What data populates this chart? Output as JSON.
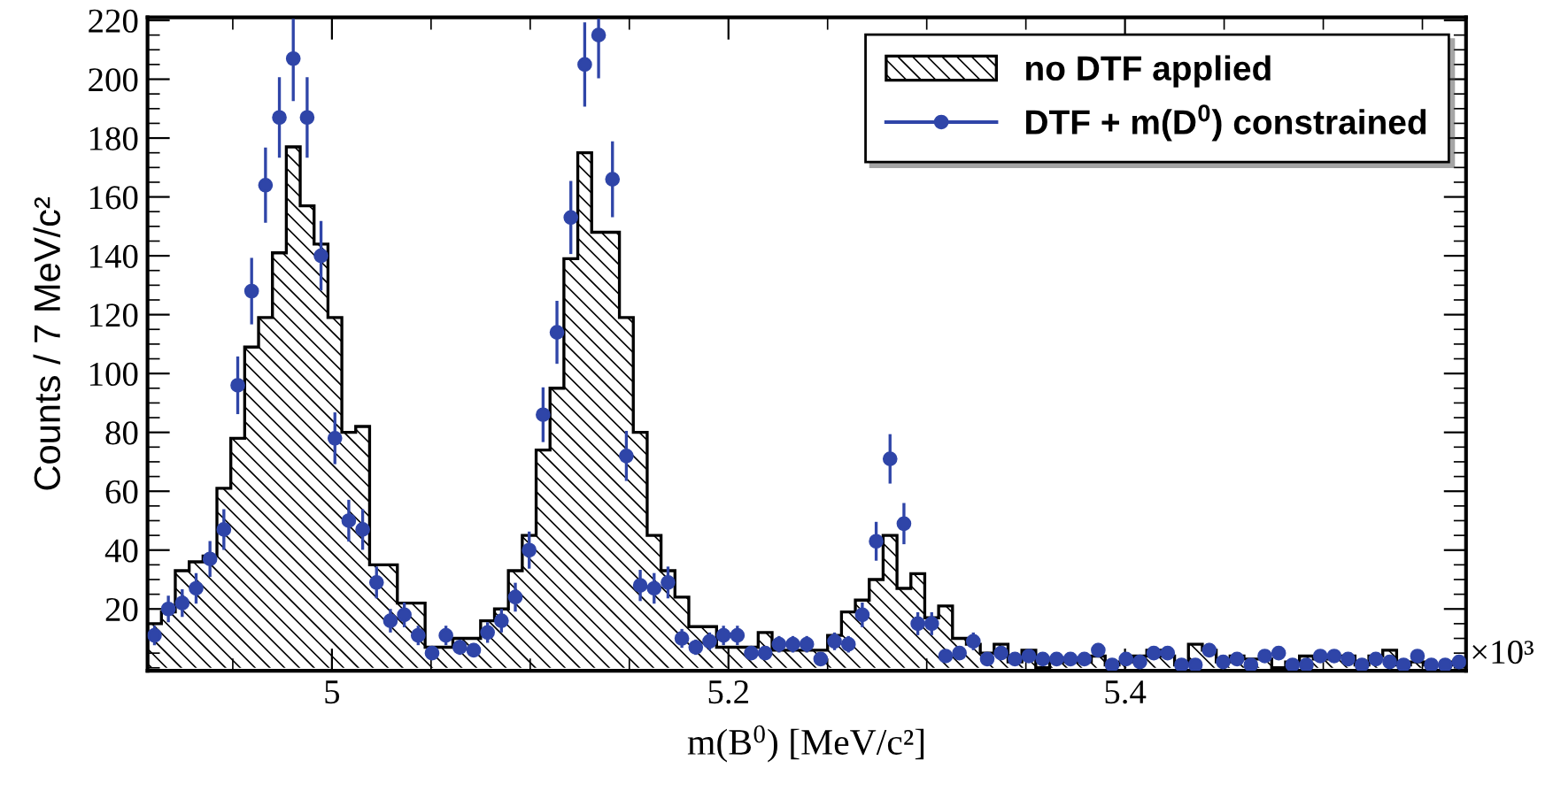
{
  "chart_data": {
    "type": "histogram",
    "xlabel": "m(B$^{0}$) [MeV/c²]",
    "ylabel": "Counts / 7 MeV/c²",
    "annotations": [
      "×10³"
    ],
    "xlim": [
      4.907,
      5.572
    ],
    "ylim": [
      -1,
      221
    ],
    "xticks": [
      {
        "value": 4.95,
        "label": null
      },
      {
        "value": 5,
        "label": "5"
      },
      {
        "value": 5.05,
        "label": null
      },
      {
        "value": 5.1,
        "label": null
      },
      {
        "value": 5.15,
        "label": null
      },
      5.2,
      {
        "value": 5.25,
        "label": null
      },
      {
        "value": 5.3,
        "label": null
      },
      {
        "value": 5.35,
        "label": null
      },
      5.4,
      {
        "value": 5.45,
        "label": null
      },
      {
        "value": 5.5,
        "label": null
      },
      {
        "value": 5.55,
        "label": null
      }
    ],
    "yticks": [
      {
        "value": 0,
        "label": null
      },
      {
        "value": 5,
        "label": null
      },
      {
        "value": 10,
        "label": null
      },
      {
        "value": 15,
        "label": null
      },
      20,
      {
        "value": 25,
        "label": null
      },
      {
        "value": 30,
        "label": null
      },
      {
        "value": 35,
        "label": null
      },
      40,
      {
        "value": 45,
        "label": null
      },
      {
        "value": 50,
        "label": null
      },
      {
        "value": 55,
        "label": null
      },
      60,
      {
        "value": 65,
        "label": null
      },
      {
        "value": 70,
        "label": null
      },
      {
        "value": 75,
        "label": null
      },
      80,
      {
        "value": 85,
        "label": null
      },
      {
        "value": 90,
        "label": null
      },
      {
        "value": 95,
        "label": null
      },
      100,
      {
        "value": 105,
        "label": null
      },
      {
        "value": 110,
        "label": null
      },
      {
        "value": 115,
        "label": null
      },
      120,
      {
        "value": 125,
        "label": null
      },
      {
        "value": 130,
        "label": null
      },
      {
        "value": 135,
        "label": null
      },
      140,
      {
        "value": 145,
        "label": null
      },
      {
        "value": 150,
        "label": null
      },
      {
        "value": 155,
        "label": null
      },
      160,
      {
        "value": 165,
        "label": null
      },
      {
        "value": 170,
        "label": null
      },
      {
        "value": 175,
        "label": null
      },
      180,
      {
        "value": 185,
        "label": null
      },
      {
        "value": 190,
        "label": null
      },
      {
        "value": 195,
        "label": null
      },
      200,
      {
        "value": 205,
        "label": null
      },
      {
        "value": 210,
        "label": null
      },
      {
        "value": 215,
        "label": null
      },
      220
    ],
    "bins": [
      4.907,
      4.914,
      4.921,
      4.928,
      4.935,
      4.942,
      4.949,
      4.956,
      4.963,
      4.97,
      4.977,
      4.984,
      4.991,
      4.998,
      5.005,
      5.012,
      5.019,
      5.026,
      5.033,
      5.04,
      5.047,
      5.054,
      5.061,
      5.068,
      5.075,
      5.082,
      5.089,
      5.096,
      5.103,
      5.11,
      5.117,
      5.124,
      5.131,
      5.138,
      5.145,
      5.152,
      5.159,
      5.166,
      5.173,
      5.18,
      5.187,
      5.194,
      5.201,
      5.208,
      5.215,
      5.222,
      5.229,
      5.236,
      5.243,
      5.25,
      5.257,
      5.264,
      5.271,
      5.278,
      5.285,
      5.292,
      5.299,
      5.306,
      5.313,
      5.32,
      5.327,
      5.334,
      5.341,
      5.348,
      5.355,
      5.362,
      5.369,
      5.376,
      5.383,
      5.39,
      5.397,
      5.404,
      5.411,
      5.418,
      5.425,
      5.432,
      5.439,
      5.446,
      5.453,
      5.46,
      5.467,
      5.474,
      5.481,
      5.488,
      5.495,
      5.502,
      5.509,
      5.516,
      5.523,
      5.53,
      5.537,
      5.544,
      5.551,
      5.558,
      5.565,
      5.572
    ],
    "legend": "top right",
    "grid": false,
    "series": [
      {
        "name": "no DTF applied",
        "color": "#000000",
        "values": [
          15,
          19,
          33,
          36,
          38,
          61,
          78,
          109,
          119,
          141,
          177,
          157,
          144,
          119,
          80,
          82,
          35,
          35,
          22,
          22,
          7,
          7,
          10,
          10,
          16,
          20,
          33,
          45,
          74,
          95,
          139,
          175,
          148,
          148,
          119,
          80,
          45,
          33,
          24,
          14,
          14,
          7,
          7,
          7,
          12,
          6,
          6,
          6,
          6,
          11,
          19,
          23,
          30,
          45,
          27,
          32,
          17,
          21,
          10,
          8,
          5,
          8,
          2,
          6,
          0,
          3,
          2,
          2,
          4,
          1,
          2,
          4,
          6,
          4,
          1,
          8,
          6,
          2,
          4,
          3,
          3,
          0,
          2,
          4,
          3,
          4,
          4,
          1,
          4,
          6,
          1,
          2,
          1,
          1,
          2
        ]
      },
      {
        "name": "DTF + m(D$^{0}$) constrained",
        "type": "scatter",
        "color": "#2f45a8",
        "marker": "circle",
        "x": [
          4.9105,
          4.9175,
          4.9245,
          4.9315,
          4.9385,
          4.9455,
          4.9525,
          4.9595,
          4.9665,
          4.9735,
          4.9805,
          4.9875,
          4.9945,
          5.0015,
          5.0085,
          5.0155,
          5.0225,
          5.0295,
          5.0365,
          5.0435,
          5.0505,
          5.0575,
          5.0645,
          5.0715,
          5.0785,
          5.0855,
          5.0925,
          5.0995,
          5.1065,
          5.1135,
          5.1205,
          5.1275,
          5.1345,
          5.1415,
          5.1485,
          5.1555,
          5.1625,
          5.1695,
          5.1765,
          5.1835,
          5.1905,
          5.1975,
          5.2045,
          5.2115,
          5.2185,
          5.2255,
          5.2325,
          5.2395,
          5.2465,
          5.2535,
          5.2605,
          5.2675,
          5.2745,
          5.2815,
          5.2885,
          5.2955,
          5.3025,
          5.3095,
          5.3165,
          5.3235,
          5.3305,
          5.3375,
          5.3445,
          5.3515,
          5.3585,
          5.3655,
          5.3725,
          5.3795,
          5.3865,
          5.3935,
          5.4005,
          5.4075,
          5.4145,
          5.4215,
          5.4285,
          5.4355,
          5.4425,
          5.4495,
          5.4565,
          5.4635,
          5.4705,
          5.4775,
          5.4845,
          5.4915,
          5.4985,
          5.5055,
          5.5125,
          5.5195,
          5.5265,
          5.5335,
          5.5405,
          5.5475,
          5.5545,
          5.5615,
          5.5685
        ],
        "values": [
          11,
          20,
          22,
          27,
          37,
          47,
          96,
          128,
          164,
          187,
          207,
          187,
          140,
          78,
          50,
          47,
          29,
          16,
          18,
          11,
          5,
          11,
          7,
          6,
          12,
          16,
          24,
          40,
          86,
          114,
          153,
          205,
          215,
          166,
          72,
          28,
          27,
          29,
          10,
          7,
          9,
          11,
          11,
          5,
          5,
          8,
          8,
          8,
          3,
          9,
          8,
          18,
          43,
          71,
          49,
          15,
          15,
          4,
          5,
          9,
          3,
          5,
          3,
          4,
          3,
          3,
          3,
          3,
          6,
          1,
          3,
          2,
          5,
          5,
          1,
          1,
          6,
          2,
          3,
          1,
          4,
          5,
          1,
          1,
          4,
          4,
          3,
          1,
          3,
          2,
          1,
          4,
          1,
          1,
          2
        ],
        "errors": [
          3.3,
          4.5,
          4.7,
          5.2,
          6.1,
          6.9,
          9.8,
          11.3,
          12.8,
          13.7,
          [
            192.6,
            220.5
          ],
          13.7,
          11.8,
          8.8,
          7.1,
          6.9,
          5.4,
          4,
          4.2,
          3.3,
          2.2,
          3.3,
          2.6,
          2.4,
          3.5,
          4,
          4.9,
          6.3,
          9.3,
          10.7,
          12.4,
          14.3,
          [
            200.3,
            220.5
          ],
          12.9,
          8.5,
          5.3,
          5.2,
          5.4,
          3.2,
          2.6,
          3,
          3.3,
          3.3,
          2.2,
          2.2,
          2.8,
          2.8,
          2.8,
          1.7,
          3,
          2.8,
          4.2,
          6.6,
          8.4,
          7,
          3.9,
          3.9,
          2,
          2.2,
          3,
          1.7,
          2.2,
          1.7,
          2,
          1.7,
          1.7,
          1.7,
          1.7,
          2.4,
          1,
          1.7,
          1.4,
          2.2,
          2.2,
          1,
          1,
          2.4,
          1.4,
          1.7,
          1,
          2,
          2.2,
          1,
          1,
          2,
          2,
          1.7,
          1,
          1.7,
          1.4,
          1,
          2,
          1,
          1,
          1.4
        ]
      }
    ]
  }
}
